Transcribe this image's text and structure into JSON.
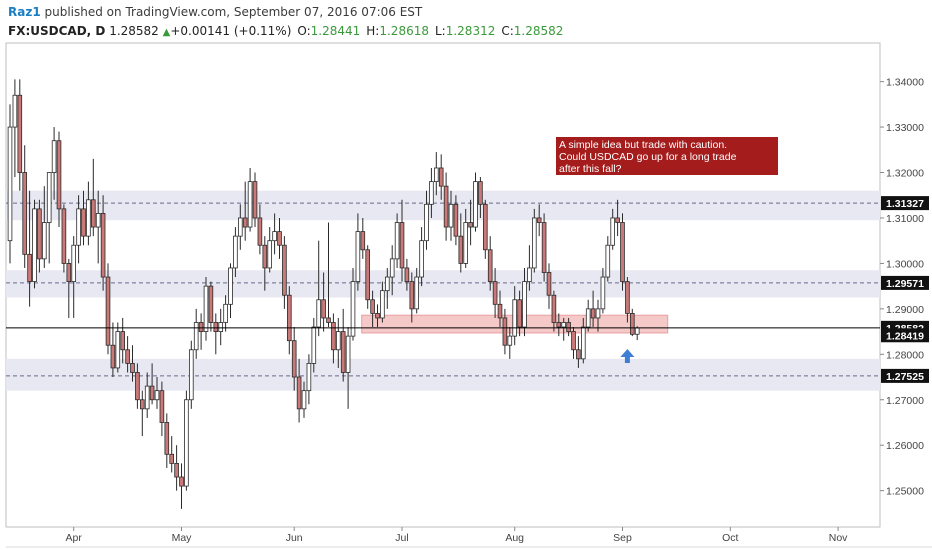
{
  "header": {
    "user": "Raz1",
    "published": "published on TradingView.com, September 07, 2016 07:06 EST",
    "symbol": "FX:USDCAD, D",
    "last": "1.28582",
    "change_arrow": "▲",
    "change": "+0.00141 (+0.11%)",
    "o_label": "O:",
    "o": "1.28441",
    "h_label": "H:",
    "h": "1.28618",
    "l_label": "L:",
    "l": "1.28312",
    "c_label": "C:",
    "c": "1.28582"
  },
  "annotation": {
    "text": "A simple idea but trade with caution. Could USDCAD go up for a long trade after this fall?",
    "lines": [
      "A simple idea but trade with caution.",
      "Could USDCAD go up for a long trade",
      "after this fall?"
    ],
    "bg": "#a51c1c",
    "fg": "#ffffff"
  },
  "colors": {
    "up_fill": "#ffffff",
    "down_fill": "#c97a78",
    "wick": "#2a2a2a",
    "zone": "#e8e8f2",
    "support_zone": "#f6c9c9",
    "arrow": "#3d7fd6",
    "badge_bg": "#111111"
  },
  "chart_data": {
    "type": "candlestick",
    "y_range": [
      1.242,
      1.3485
    ],
    "y_ticks": [
      "1.34000",
      "1.33000",
      "1.32000",
      "1.31000",
      "1.30000",
      "1.29000",
      "1.28000",
      "1.27000",
      "1.26000",
      "1.25000"
    ],
    "x_labels": [
      "Apr",
      "May",
      "Jun",
      "Jul",
      "Aug",
      "Sep",
      "Oct",
      "Nov"
    ],
    "x_label_bars": [
      13,
      35,
      58,
      80,
      103,
      125,
      147,
      169
    ],
    "price_badges": [
      {
        "value": "1.31327"
      },
      {
        "value": "1.29571"
      },
      {
        "value": "1.28582"
      },
      {
        "value": "1.28419"
      },
      {
        "value": "1.27525"
      }
    ],
    "resistance_levels": [
      1.31327,
      1.29571,
      1.27525
    ],
    "resistance_zones": [
      [
        1.3095,
        1.316
      ],
      [
        1.2925,
        1.2985
      ],
      [
        1.272,
        1.279
      ]
    ],
    "support_zone": [
      1.2847,
      1.2886
    ],
    "support_zone_bars": [
      73,
      133
    ],
    "current_price": 1.28582,
    "arrow_bar": 126,
    "candles": [
      {
        "o": 1.305,
        "h": 1.335,
        "l": 1.3,
        "c": 1.33
      },
      {
        "o": 1.33,
        "h": 1.3405,
        "l": 1.319,
        "c": 1.337
      },
      {
        "o": 1.337,
        "h": 1.3405,
        "l": 1.316,
        "c": 1.32
      },
      {
        "o": 1.32,
        "h": 1.326,
        "l": 1.299,
        "c": 1.302
      },
      {
        "o": 1.302,
        "h": 1.316,
        "l": 1.2905,
        "c": 1.296
      },
      {
        "o": 1.296,
        "h": 1.314,
        "l": 1.2945,
        "c": 1.312
      },
      {
        "o": 1.312,
        "h": 1.314,
        "l": 1.298,
        "c": 1.301
      },
      {
        "o": 1.301,
        "h": 1.317,
        "l": 1.299,
        "c": 1.309
      },
      {
        "o": 1.309,
        "h": 1.32,
        "l": 1.3,
        "c": 1.32
      },
      {
        "o": 1.32,
        "h": 1.33,
        "l": 1.314,
        "c": 1.327
      },
      {
        "o": 1.327,
        "h": 1.329,
        "l": 1.308,
        "c": 1.312
      },
      {
        "o": 1.312,
        "h": 1.313,
        "l": 1.298,
        "c": 1.3
      },
      {
        "o": 1.3,
        "h": 1.301,
        "l": 1.288,
        "c": 1.296
      },
      {
        "o": 1.296,
        "h": 1.306,
        "l": 1.288,
        "c": 1.304
      },
      {
        "o": 1.304,
        "h": 1.315,
        "l": 1.3,
        "c": 1.312
      },
      {
        "o": 1.312,
        "h": 1.316,
        "l": 1.304,
        "c": 1.306
      },
      {
        "o": 1.306,
        "h": 1.318,
        "l": 1.304,
        "c": 1.314
      },
      {
        "o": 1.314,
        "h": 1.323,
        "l": 1.306,
        "c": 1.308
      },
      {
        "o": 1.308,
        "h": 1.316,
        "l": 1.3,
        "c": 1.311
      },
      {
        "o": 1.311,
        "h": 1.315,
        "l": 1.294,
        "c": 1.297
      },
      {
        "o": 1.297,
        "h": 1.3,
        "l": 1.28,
        "c": 1.282
      },
      {
        "o": 1.282,
        "h": 1.287,
        "l": 1.275,
        "c": 1.277
      },
      {
        "o": 1.277,
        "h": 1.287,
        "l": 1.276,
        "c": 1.285
      },
      {
        "o": 1.285,
        "h": 1.288,
        "l": 1.278,
        "c": 1.281
      },
      {
        "o": 1.281,
        "h": 1.284,
        "l": 1.276,
        "c": 1.278
      },
      {
        "o": 1.278,
        "h": 1.282,
        "l": 1.274,
        "c": 1.276
      },
      {
        "o": 1.276,
        "h": 1.278,
        "l": 1.268,
        "c": 1.27
      },
      {
        "o": 1.27,
        "h": 1.272,
        "l": 1.262,
        "c": 1.268
      },
      {
        "o": 1.268,
        "h": 1.276,
        "l": 1.266,
        "c": 1.273
      },
      {
        "o": 1.273,
        "h": 1.278,
        "l": 1.269,
        "c": 1.27
      },
      {
        "o": 1.27,
        "h": 1.275,
        "l": 1.268,
        "c": 1.272
      },
      {
        "o": 1.272,
        "h": 1.274,
        "l": 1.262,
        "c": 1.265
      },
      {
        "o": 1.265,
        "h": 1.267,
        "l": 1.255,
        "c": 1.258
      },
      {
        "o": 1.258,
        "h": 1.262,
        "l": 1.254,
        "c": 1.256
      },
      {
        "o": 1.256,
        "h": 1.26,
        "l": 1.25,
        "c": 1.253
      },
      {
        "o": 1.253,
        "h": 1.256,
        "l": 1.246,
        "c": 1.251
      },
      {
        "o": 1.251,
        "h": 1.272,
        "l": 1.25,
        "c": 1.27
      },
      {
        "o": 1.27,
        "h": 1.283,
        "l": 1.268,
        "c": 1.281
      },
      {
        "o": 1.281,
        "h": 1.29,
        "l": 1.279,
        "c": 1.287
      },
      {
        "o": 1.287,
        "h": 1.289,
        "l": 1.281,
        "c": 1.285
      },
      {
        "o": 1.285,
        "h": 1.297,
        "l": 1.283,
        "c": 1.295
      },
      {
        "o": 1.295,
        "h": 1.296,
        "l": 1.285,
        "c": 1.287
      },
      {
        "o": 1.287,
        "h": 1.289,
        "l": 1.28,
        "c": 1.285
      },
      {
        "o": 1.285,
        "h": 1.29,
        "l": 1.282,
        "c": 1.287
      },
      {
        "o": 1.287,
        "h": 1.293,
        "l": 1.285,
        "c": 1.291
      },
      {
        "o": 1.291,
        "h": 1.3,
        "l": 1.288,
        "c": 1.299
      },
      {
        "o": 1.299,
        "h": 1.308,
        "l": 1.297,
        "c": 1.306
      },
      {
        "o": 1.306,
        "h": 1.313,
        "l": 1.303,
        "c": 1.31
      },
      {
        "o": 1.31,
        "h": 1.318,
        "l": 1.305,
        "c": 1.308
      },
      {
        "o": 1.308,
        "h": 1.321,
        "l": 1.307,
        "c": 1.318
      },
      {
        "o": 1.318,
        "h": 1.32,
        "l": 1.308,
        "c": 1.31
      },
      {
        "o": 1.31,
        "h": 1.313,
        "l": 1.302,
        "c": 1.304
      },
      {
        "o": 1.304,
        "h": 1.306,
        "l": 1.294,
        "c": 1.299
      },
      {
        "o": 1.299,
        "h": 1.308,
        "l": 1.298,
        "c": 1.305
      },
      {
        "o": 1.305,
        "h": 1.311,
        "l": 1.302,
        "c": 1.307
      },
      {
        "o": 1.307,
        "h": 1.31,
        "l": 1.301,
        "c": 1.304
      },
      {
        "o": 1.304,
        "h": 1.306,
        "l": 1.29,
        "c": 1.293
      },
      {
        "o": 1.293,
        "h": 1.295,
        "l": 1.28,
        "c": 1.283
      },
      {
        "o": 1.283,
        "h": 1.286,
        "l": 1.272,
        "c": 1.275
      },
      {
        "o": 1.275,
        "h": 1.279,
        "l": 1.265,
        "c": 1.268
      },
      {
        "o": 1.268,
        "h": 1.274,
        "l": 1.266,
        "c": 1.272
      },
      {
        "o": 1.272,
        "h": 1.28,
        "l": 1.269,
        "c": 1.278
      },
      {
        "o": 1.278,
        "h": 1.288,
        "l": 1.276,
        "c": 1.286
      },
      {
        "o": 1.286,
        "h": 1.305,
        "l": 1.284,
        "c": 1.292
      },
      {
        "o": 1.292,
        "h": 1.298,
        "l": 1.285,
        "c": 1.288
      },
      {
        "o": 1.288,
        "h": 1.309,
        "l": 1.286,
        "c": 1.287
      },
      {
        "o": 1.287,
        "h": 1.289,
        "l": 1.278,
        "c": 1.281
      },
      {
        "o": 1.281,
        "h": 1.288,
        "l": 1.277,
        "c": 1.285
      },
      {
        "o": 1.285,
        "h": 1.29,
        "l": 1.274,
        "c": 1.276
      },
      {
        "o": 1.276,
        "h": 1.286,
        "l": 1.268,
        "c": 1.284
      },
      {
        "o": 1.284,
        "h": 1.299,
        "l": 1.283,
        "c": 1.296
      },
      {
        "o": 1.296,
        "h": 1.311,
        "l": 1.294,
        "c": 1.307
      },
      {
        "o": 1.307,
        "h": 1.31,
        "l": 1.301,
        "c": 1.303
      },
      {
        "o": 1.303,
        "h": 1.304,
        "l": 1.29,
        "c": 1.292
      },
      {
        "o": 1.292,
        "h": 1.294,
        "l": 1.286,
        "c": 1.289
      },
      {
        "o": 1.289,
        "h": 1.291,
        "l": 1.286,
        "c": 1.288
      },
      {
        "o": 1.288,
        "h": 1.296,
        "l": 1.287,
        "c": 1.294
      },
      {
        "o": 1.294,
        "h": 1.299,
        "l": 1.29,
        "c": 1.297
      },
      {
        "o": 1.297,
        "h": 1.304,
        "l": 1.293,
        "c": 1.301
      },
      {
        "o": 1.301,
        "h": 1.311,
        "l": 1.299,
        "c": 1.309
      },
      {
        "o": 1.309,
        "h": 1.314,
        "l": 1.296,
        "c": 1.299
      },
      {
        "o": 1.299,
        "h": 1.301,
        "l": 1.294,
        "c": 1.296
      },
      {
        "o": 1.296,
        "h": 1.298,
        "l": 1.287,
        "c": 1.29
      },
      {
        "o": 1.29,
        "h": 1.299,
        "l": 1.289,
        "c": 1.297
      },
      {
        "o": 1.297,
        "h": 1.308,
        "l": 1.295,
        "c": 1.305
      },
      {
        "o": 1.305,
        "h": 1.316,
        "l": 1.303,
        "c": 1.313
      },
      {
        "o": 1.313,
        "h": 1.321,
        "l": 1.31,
        "c": 1.318
      },
      {
        "o": 1.318,
        "h": 1.3245,
        "l": 1.315,
        "c": 1.321
      },
      {
        "o": 1.321,
        "h": 1.324,
        "l": 1.314,
        "c": 1.317
      },
      {
        "o": 1.317,
        "h": 1.32,
        "l": 1.305,
        "c": 1.308
      },
      {
        "o": 1.308,
        "h": 1.316,
        "l": 1.305,
        "c": 1.313
      },
      {
        "o": 1.313,
        "h": 1.315,
        "l": 1.304,
        "c": 1.306
      },
      {
        "o": 1.306,
        "h": 1.311,
        "l": 1.298,
        "c": 1.3
      },
      {
        "o": 1.3,
        "h": 1.312,
        "l": 1.299,
        "c": 1.309
      },
      {
        "o": 1.309,
        "h": 1.314,
        "l": 1.304,
        "c": 1.308
      },
      {
        "o": 1.308,
        "h": 1.32,
        "l": 1.307,
        "c": 1.318
      },
      {
        "o": 1.318,
        "h": 1.319,
        "l": 1.31,
        "c": 1.313
      },
      {
        "o": 1.313,
        "h": 1.314,
        "l": 1.301,
        "c": 1.303
      },
      {
        "o": 1.303,
        "h": 1.306,
        "l": 1.294,
        "c": 1.296
      },
      {
        "o": 1.296,
        "h": 1.299,
        "l": 1.288,
        "c": 1.291
      },
      {
        "o": 1.291,
        "h": 1.294,
        "l": 1.286,
        "c": 1.288
      },
      {
        "o": 1.288,
        "h": 1.29,
        "l": 1.28,
        "c": 1.282
      },
      {
        "o": 1.282,
        "h": 1.286,
        "l": 1.279,
        "c": 1.284
      },
      {
        "o": 1.284,
        "h": 1.295,
        "l": 1.282,
        "c": 1.292
      },
      {
        "o": 1.292,
        "h": 1.294,
        "l": 1.284,
        "c": 1.286
      },
      {
        "o": 1.286,
        "h": 1.299,
        "l": 1.284,
        "c": 1.296
      },
      {
        "o": 1.296,
        "h": 1.304,
        "l": 1.294,
        "c": 1.299
      },
      {
        "o": 1.299,
        "h": 1.312,
        "l": 1.298,
        "c": 1.31
      },
      {
        "o": 1.31,
        "h": 1.313,
        "l": 1.306,
        "c": 1.309
      },
      {
        "o": 1.309,
        "h": 1.311,
        "l": 1.296,
        "c": 1.298
      },
      {
        "o": 1.298,
        "h": 1.3,
        "l": 1.29,
        "c": 1.293
      },
      {
        "o": 1.293,
        "h": 1.294,
        "l": 1.285,
        "c": 1.287
      },
      {
        "o": 1.287,
        "h": 1.289,
        "l": 1.284,
        "c": 1.286
      },
      {
        "o": 1.286,
        "h": 1.288,
        "l": 1.283,
        "c": 1.287
      },
      {
        "o": 1.287,
        "h": 1.288,
        "l": 1.284,
        "c": 1.285
      },
      {
        "o": 1.285,
        "h": 1.286,
        "l": 1.279,
        "c": 1.281
      },
      {
        "o": 1.281,
        "h": 1.284,
        "l": 1.277,
        "c": 1.279
      },
      {
        "o": 1.279,
        "h": 1.288,
        "l": 1.278,
        "c": 1.286
      },
      {
        "o": 1.286,
        "h": 1.292,
        "l": 1.285,
        "c": 1.29
      },
      {
        "o": 1.29,
        "h": 1.294,
        "l": 1.286,
        "c": 1.288
      },
      {
        "o": 1.288,
        "h": 1.292,
        "l": 1.285,
        "c": 1.29
      },
      {
        "o": 1.29,
        "h": 1.299,
        "l": 1.289,
        "c": 1.297
      },
      {
        "o": 1.297,
        "h": 1.306,
        "l": 1.296,
        "c": 1.304
      },
      {
        "o": 1.304,
        "h": 1.312,
        "l": 1.303,
        "c": 1.31
      },
      {
        "o": 1.31,
        "h": 1.314,
        "l": 1.306,
        "c": 1.309
      },
      {
        "o": 1.309,
        "h": 1.311,
        "l": 1.294,
        "c": 1.296
      },
      {
        "o": 1.296,
        "h": 1.297,
        "l": 1.287,
        "c": 1.289
      },
      {
        "o": 1.289,
        "h": 1.29,
        "l": 1.284,
        "c": 1.2844
      },
      {
        "o": 1.28441,
        "h": 1.28618,
        "l": 1.28312,
        "c": 1.28582
      }
    ]
  }
}
